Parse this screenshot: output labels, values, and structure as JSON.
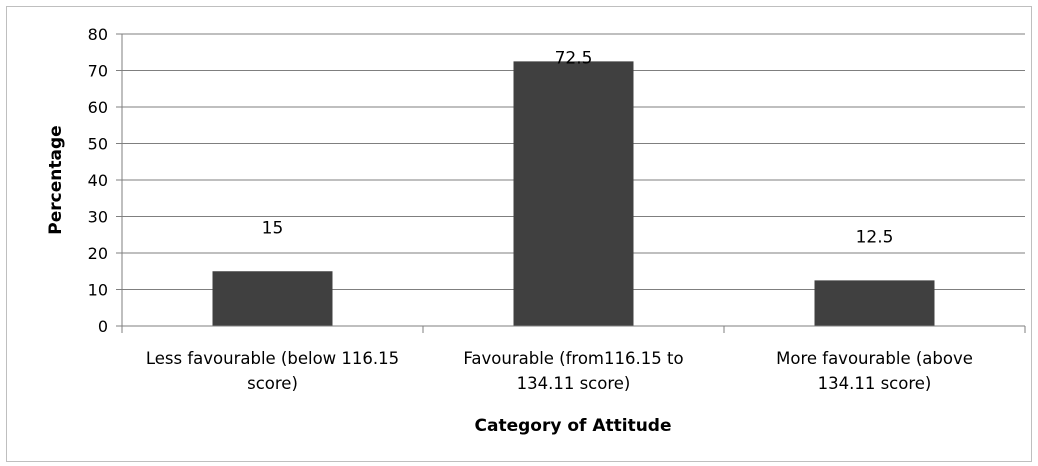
{
  "chart_data": {
    "type": "bar",
    "title": "",
    "xlabel": "Category of Attitude",
    "ylabel": "Percentage",
    "categories": [
      [
        "Less favourable (below 116.15",
        "score)"
      ],
      [
        "Favourable (from116.15 to",
        "134.11 score)"
      ],
      [
        "More favourable (above",
        "134.11 score)"
      ]
    ],
    "values": [
      15,
      72.5,
      12.5
    ],
    "data_labels": [
      "15",
      "72.5",
      "12.5"
    ],
    "ylim": [
      0,
      80
    ],
    "yticks": [
      0,
      10,
      20,
      30,
      40,
      50,
      60,
      70,
      80
    ],
    "grid": true,
    "legend": "none",
    "colors": {
      "bar": "#404040",
      "grid": "#7f7f7f",
      "axis": "#7f7f7f"
    }
  }
}
